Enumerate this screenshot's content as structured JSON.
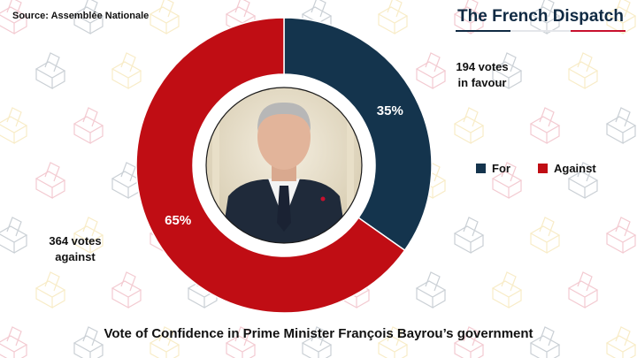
{
  "source": "Source: Assemblée Nationale",
  "brand": {
    "name": "The French Dispatch",
    "colors": [
      "#102a43",
      "#e4e6ea",
      "#c8102e"
    ]
  },
  "photo": {
    "subject": "portrait-of-francois-bayrou"
  },
  "chart_data": {
    "type": "pie",
    "title": "Vote of Confidence in Prime Minister François Bayrou’s government",
    "categories": [
      "For",
      "Against"
    ],
    "values": [
      194,
      364
    ],
    "percent_labels": [
      "35%",
      "65%"
    ],
    "colors": [
      "#14344d",
      "#c00d14"
    ],
    "annotations": {
      "for": [
        "194 votes",
        "in favour"
      ],
      "against": [
        "364 votes",
        "against"
      ]
    },
    "legend": {
      "placement": "right",
      "items": [
        "For",
        "Against"
      ]
    }
  }
}
